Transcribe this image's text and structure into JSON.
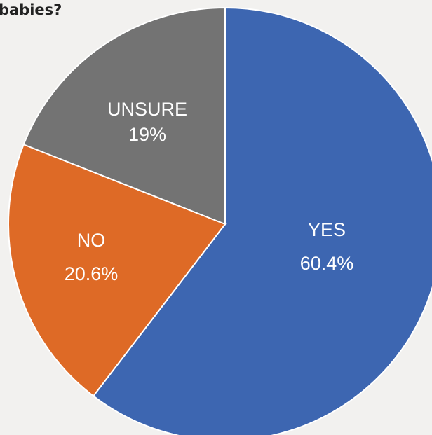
{
  "chart_data": {
    "type": "pie",
    "title": "babies?",
    "slices": [
      {
        "label": "YES",
        "value": 60.4,
        "value_text": "60.4%",
        "color": "#3d66b1"
      },
      {
        "label": "NO",
        "value": 20.6,
        "value_text": "20.6%",
        "color": "#de6a26"
      },
      {
        "label": "UNSURE",
        "value": 19,
        "value_text": "19%",
        "color": "#737373"
      }
    ],
    "start": "12 o'clock",
    "direction": "clockwise",
    "legend": "none",
    "data_labels": "inside"
  }
}
